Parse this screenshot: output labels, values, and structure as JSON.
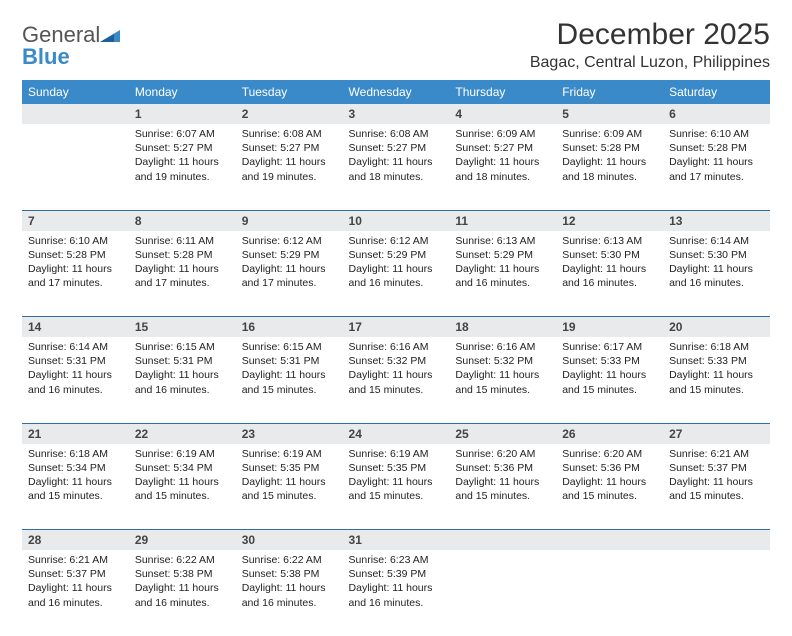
{
  "logo": {
    "general": "General",
    "blue": "Blue"
  },
  "title": "December 2025",
  "location": "Bagac, Central Luzon, Philippines",
  "colors": {
    "header_bg": "#3a8ac9",
    "header_text": "#ffffff",
    "daynum_bg": "#e9eaeb",
    "week_border": "#2f6fa3",
    "text": "#222222",
    "logo_blue": "#3a8ac9"
  },
  "typography": {
    "title_fontsize": 30,
    "location_fontsize": 16,
    "weekday_fontsize": 12,
    "daynum_fontsize": 12,
    "body_fontsize": 10.5
  },
  "weekdays": [
    "Sunday",
    "Monday",
    "Tuesday",
    "Wednesday",
    "Thursday",
    "Friday",
    "Saturday"
  ],
  "weeks": [
    [
      {
        "n": "",
        "body": ""
      },
      {
        "n": "1",
        "body": "Sunrise: 6:07 AM\nSunset: 5:27 PM\nDaylight: 11 hours and 19 minutes."
      },
      {
        "n": "2",
        "body": "Sunrise: 6:08 AM\nSunset: 5:27 PM\nDaylight: 11 hours and 19 minutes."
      },
      {
        "n": "3",
        "body": "Sunrise: 6:08 AM\nSunset: 5:27 PM\nDaylight: 11 hours and 18 minutes."
      },
      {
        "n": "4",
        "body": "Sunrise: 6:09 AM\nSunset: 5:27 PM\nDaylight: 11 hours and 18 minutes."
      },
      {
        "n": "5",
        "body": "Sunrise: 6:09 AM\nSunset: 5:28 PM\nDaylight: 11 hours and 18 minutes."
      },
      {
        "n": "6",
        "body": "Sunrise: 6:10 AM\nSunset: 5:28 PM\nDaylight: 11 hours and 17 minutes."
      }
    ],
    [
      {
        "n": "7",
        "body": "Sunrise: 6:10 AM\nSunset: 5:28 PM\nDaylight: 11 hours and 17 minutes."
      },
      {
        "n": "8",
        "body": "Sunrise: 6:11 AM\nSunset: 5:28 PM\nDaylight: 11 hours and 17 minutes."
      },
      {
        "n": "9",
        "body": "Sunrise: 6:12 AM\nSunset: 5:29 PM\nDaylight: 11 hours and 17 minutes."
      },
      {
        "n": "10",
        "body": "Sunrise: 6:12 AM\nSunset: 5:29 PM\nDaylight: 11 hours and 16 minutes."
      },
      {
        "n": "11",
        "body": "Sunrise: 6:13 AM\nSunset: 5:29 PM\nDaylight: 11 hours and 16 minutes."
      },
      {
        "n": "12",
        "body": "Sunrise: 6:13 AM\nSunset: 5:30 PM\nDaylight: 11 hours and 16 minutes."
      },
      {
        "n": "13",
        "body": "Sunrise: 6:14 AM\nSunset: 5:30 PM\nDaylight: 11 hours and 16 minutes."
      }
    ],
    [
      {
        "n": "14",
        "body": "Sunrise: 6:14 AM\nSunset: 5:31 PM\nDaylight: 11 hours and 16 minutes."
      },
      {
        "n": "15",
        "body": "Sunrise: 6:15 AM\nSunset: 5:31 PM\nDaylight: 11 hours and 16 minutes."
      },
      {
        "n": "16",
        "body": "Sunrise: 6:15 AM\nSunset: 5:31 PM\nDaylight: 11 hours and 15 minutes."
      },
      {
        "n": "17",
        "body": "Sunrise: 6:16 AM\nSunset: 5:32 PM\nDaylight: 11 hours and 15 minutes."
      },
      {
        "n": "18",
        "body": "Sunrise: 6:16 AM\nSunset: 5:32 PM\nDaylight: 11 hours and 15 minutes."
      },
      {
        "n": "19",
        "body": "Sunrise: 6:17 AM\nSunset: 5:33 PM\nDaylight: 11 hours and 15 minutes."
      },
      {
        "n": "20",
        "body": "Sunrise: 6:18 AM\nSunset: 5:33 PM\nDaylight: 11 hours and 15 minutes."
      }
    ],
    [
      {
        "n": "21",
        "body": "Sunrise: 6:18 AM\nSunset: 5:34 PM\nDaylight: 11 hours and 15 minutes."
      },
      {
        "n": "22",
        "body": "Sunrise: 6:19 AM\nSunset: 5:34 PM\nDaylight: 11 hours and 15 minutes."
      },
      {
        "n": "23",
        "body": "Sunrise: 6:19 AM\nSunset: 5:35 PM\nDaylight: 11 hours and 15 minutes."
      },
      {
        "n": "24",
        "body": "Sunrise: 6:19 AM\nSunset: 5:35 PM\nDaylight: 11 hours and 15 minutes."
      },
      {
        "n": "25",
        "body": "Sunrise: 6:20 AM\nSunset: 5:36 PM\nDaylight: 11 hours and 15 minutes."
      },
      {
        "n": "26",
        "body": "Sunrise: 6:20 AM\nSunset: 5:36 PM\nDaylight: 11 hours and 15 minutes."
      },
      {
        "n": "27",
        "body": "Sunrise: 6:21 AM\nSunset: 5:37 PM\nDaylight: 11 hours and 15 minutes."
      }
    ],
    [
      {
        "n": "28",
        "body": "Sunrise: 6:21 AM\nSunset: 5:37 PM\nDaylight: 11 hours and 16 minutes."
      },
      {
        "n": "29",
        "body": "Sunrise: 6:22 AM\nSunset: 5:38 PM\nDaylight: 11 hours and 16 minutes."
      },
      {
        "n": "30",
        "body": "Sunrise: 6:22 AM\nSunset: 5:38 PM\nDaylight: 11 hours and 16 minutes."
      },
      {
        "n": "31",
        "body": "Sunrise: 6:23 AM\nSunset: 5:39 PM\nDaylight: 11 hours and 16 minutes."
      },
      {
        "n": "",
        "body": ""
      },
      {
        "n": "",
        "body": ""
      },
      {
        "n": "",
        "body": ""
      }
    ]
  ]
}
